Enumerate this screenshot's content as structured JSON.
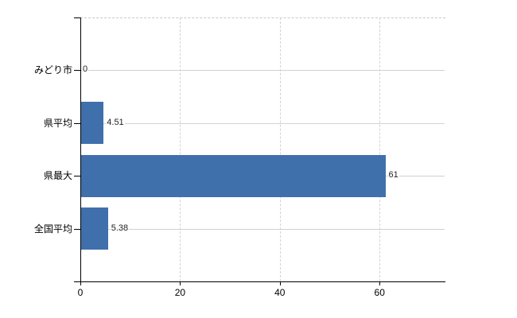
{
  "chart_data": {
    "type": "bar",
    "orientation": "horizontal",
    "title": "",
    "xlabel": "",
    "ylabel": "",
    "categories": [
      "みどり市",
      "県平均",
      "県最大",
      "全国平均"
    ],
    "values": [
      0,
      4.51,
      61,
      5.38
    ],
    "value_labels": [
      "0",
      "4.51",
      "61",
      "5.38"
    ],
    "x_ticks": [
      0,
      20,
      40,
      60
    ],
    "x_tick_labels": [
      "0",
      "20",
      "40",
      "60"
    ],
    "xlim": [
      0,
      73.2
    ],
    "grid": {
      "vertical_dashed": true,
      "horizontal_row_lines": true,
      "top_border_dashed": true
    },
    "legend": null,
    "colors": {
      "bar": "#4070ac",
      "axis": "#000000",
      "horizontal_grid": "#ccd5cc",
      "vertical_grid": "#d2d2d2",
      "top_border": "#c9c9c9",
      "category_text": "#000000",
      "tick_text": "#000000",
      "value_text": "#222222",
      "background": "#ffffff"
    }
  }
}
